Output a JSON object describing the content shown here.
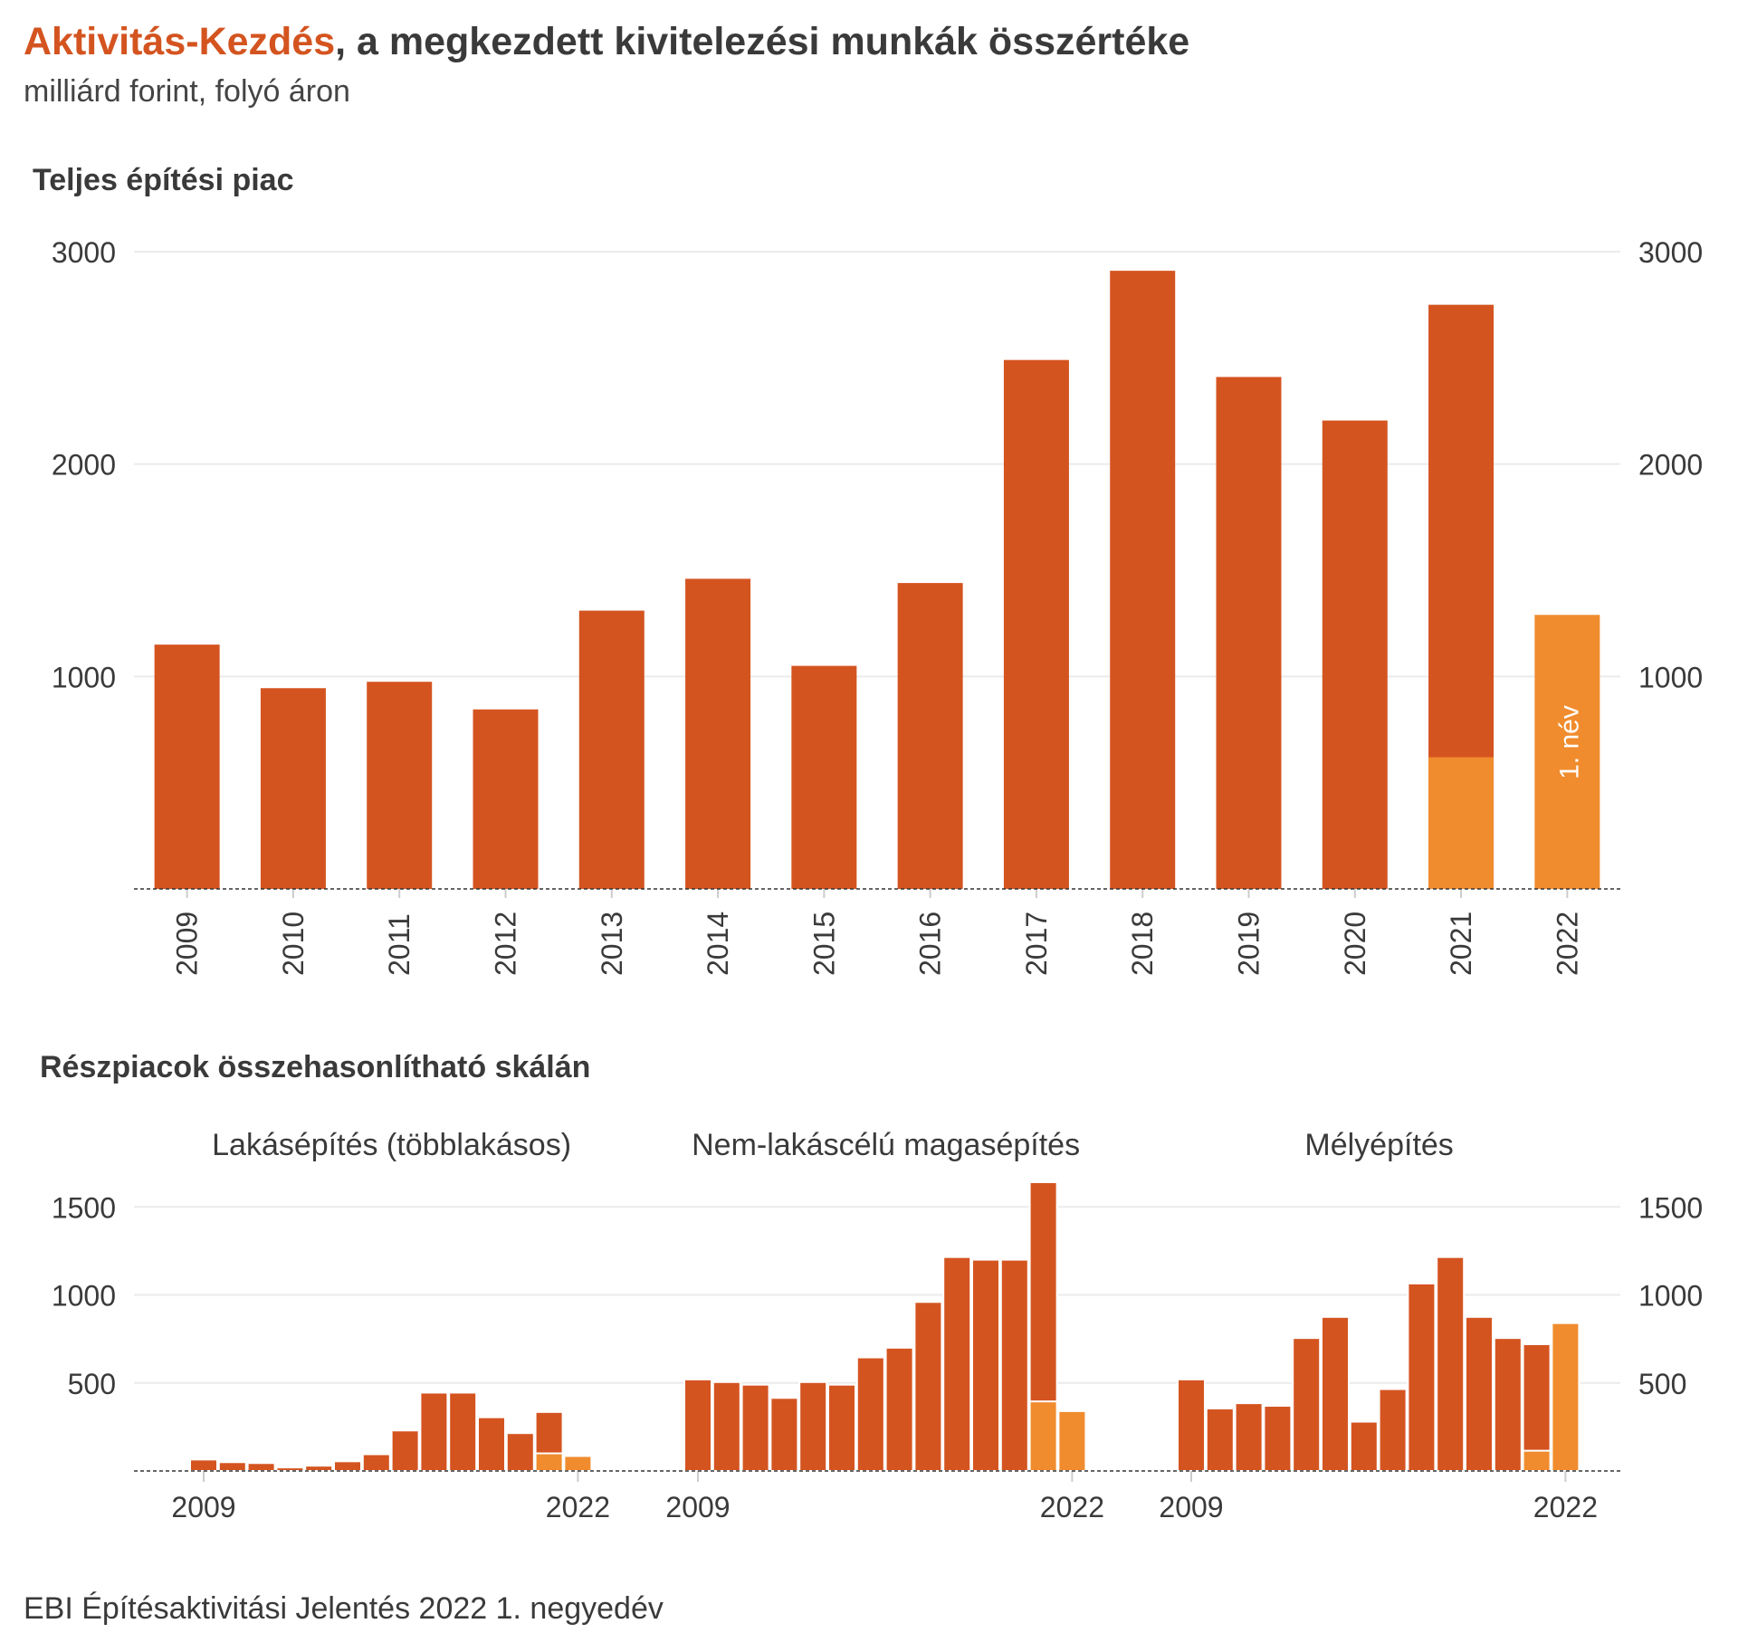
{
  "header": {
    "title_accent": "Aktivitás-Kezdés",
    "title_rest": ", a megkezdett kivitelezési munkák összértéke",
    "subtitle": "milliárd forint, folyó áron"
  },
  "sections": {
    "top": "Teljes építési piac",
    "bottom": "Részpiacok összehasonlítható skálán"
  },
  "footer": "EBI Építésaktivitási Jelentés 2022 1. negyedév",
  "colors": {
    "main": "#d45420",
    "highlight": "#f08c2e",
    "grid": "#ebebeb",
    "text": "#3a3a3a"
  },
  "chart_data": [
    {
      "type": "bar",
      "title": "Teljes építési piac",
      "categories": [
        "2009",
        "2010",
        "2011",
        "2012",
        "2013",
        "2014",
        "2015",
        "2016",
        "2017",
        "2018",
        "2019",
        "2020",
        "2021",
        "2022"
      ],
      "values": [
        1150,
        945,
        975,
        845,
        1310,
        1460,
        1050,
        1440,
        2490,
        2910,
        2410,
        2205,
        2750,
        1290
      ],
      "q1_values": [
        null,
        null,
        null,
        null,
        null,
        null,
        null,
        null,
        null,
        null,
        null,
        null,
        620,
        1290
      ],
      "y_ticks": [
        1000,
        2000,
        3000
      ],
      "ylim": [
        0,
        3100
      ],
      "annotation": "1. név",
      "xlabel": "",
      "ylabel": ""
    },
    {
      "type": "bar",
      "title": "Részpiacok összehasonlítható skálán",
      "y_ticks": [
        500,
        1000,
        1500
      ],
      "ylim": [
        0,
        1660
      ],
      "x_tick_labels": [
        "2009",
        "2022"
      ],
      "panels": [
        {
          "name": "Lakásépítés (többlakásos)",
          "values": [
            65,
            50,
            45,
            20,
            30,
            55,
            95,
            230,
            445,
            445,
            305,
            215,
            335,
            85
          ],
          "q1_values": [
            null,
            null,
            null,
            null,
            null,
            null,
            null,
            null,
            null,
            null,
            null,
            null,
            100,
            85
          ]
        },
        {
          "name": "Nem-lakáscélú magasépítés",
          "values": [
            520,
            505,
            490,
            415,
            505,
            490,
            645,
            700,
            960,
            1215,
            1200,
            1200,
            1640,
            340
          ],
          "q1_values": [
            null,
            null,
            null,
            null,
            null,
            null,
            null,
            null,
            null,
            null,
            null,
            null,
            395,
            340
          ]
        },
        {
          "name": "Mélyépítés",
          "values": [
            520,
            355,
            385,
            370,
            755,
            875,
            280,
            465,
            1065,
            1215,
            875,
            755,
            720,
            840
          ],
          "q1_values": [
            null,
            null,
            null,
            null,
            null,
            null,
            null,
            null,
            null,
            null,
            null,
            null,
            115,
            840
          ]
        }
      ]
    }
  ]
}
